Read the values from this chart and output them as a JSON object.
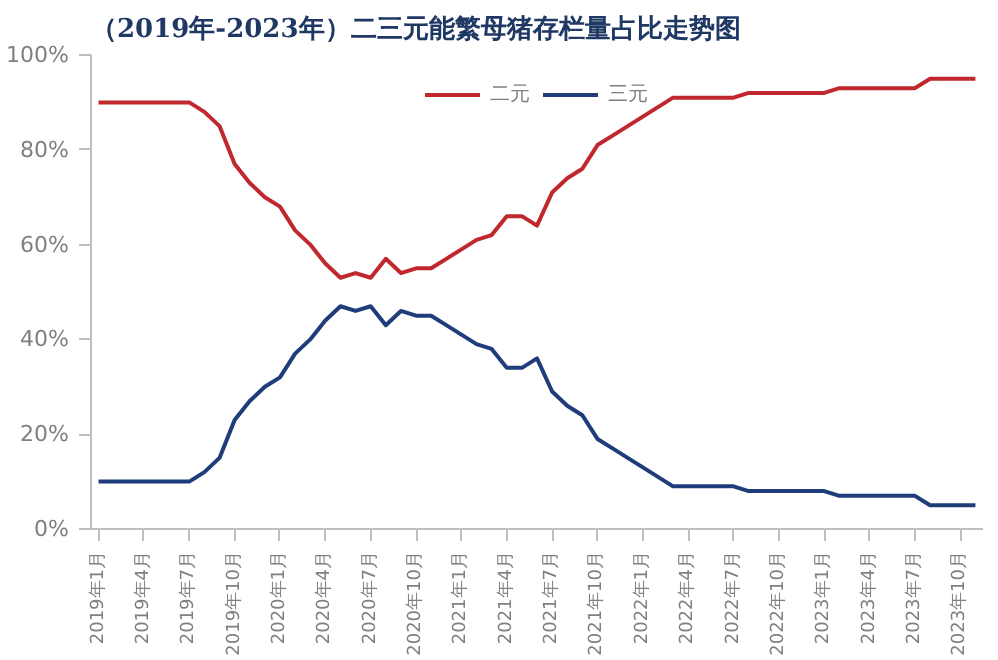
{
  "chart_data": {
    "type": "line",
    "title": "（2019年-2023年）二三元能繁母猪存栏量占比走势图",
    "categories": [
      "2019年1月",
      null,
      null,
      "2019年4月",
      null,
      null,
      "2019年7月",
      null,
      null,
      "2019年10月",
      null,
      null,
      "2020年1月",
      null,
      null,
      "2020年4月",
      null,
      null,
      "2020年7月",
      null,
      null,
      "2020年10月",
      null,
      null,
      "2021年1月",
      null,
      null,
      "2021年4月",
      null,
      null,
      "2021年7月",
      null,
      null,
      "2021年10月",
      null,
      null,
      "2022年1月",
      null,
      null,
      "2022年4月",
      null,
      null,
      "2022年7月",
      null,
      null,
      "2022年10月",
      null,
      null,
      "2023年1月",
      null,
      null,
      "2023年4月",
      null,
      null,
      "2023年7月",
      null,
      null,
      "2023年10月",
      null
    ],
    "series": [
      {
        "name": "二元",
        "color": "#c0282d",
        "values": [
          90,
          90,
          90,
          90,
          90,
          90,
          90,
          88,
          85,
          77,
          73,
          70,
          68,
          63,
          60,
          56,
          53,
          54,
          53,
          57,
          54,
          55,
          55,
          57,
          59,
          61,
          62,
          66,
          66,
          64,
          71,
          74,
          76,
          81,
          83,
          85,
          87,
          89,
          91,
          91,
          91,
          91,
          91,
          92,
          92,
          92,
          92,
          92,
          92,
          93,
          93,
          93,
          93,
          93,
          93,
          95,
          95,
          95,
          95
        ]
      },
      {
        "name": "三元",
        "color": "#1f3d7a",
        "values": [
          10,
          10,
          10,
          10,
          10,
          10,
          10,
          12,
          15,
          23,
          27,
          30,
          32,
          37,
          40,
          44,
          47,
          46,
          47,
          43,
          46,
          45,
          45,
          43,
          41,
          39,
          38,
          34,
          34,
          36,
          29,
          26,
          24,
          19,
          17,
          15,
          13,
          11,
          9,
          9,
          9,
          9,
          9,
          8,
          8,
          8,
          8,
          8,
          8,
          7,
          7,
          7,
          7,
          7,
          7,
          5,
          5,
          5,
          5
        ]
      }
    ],
    "ylim": [
      0,
      100
    ],
    "yticks": [
      {
        "value": 0,
        "label": "0%"
      },
      {
        "value": 20,
        "label": "20%"
      },
      {
        "value": 40,
        "label": "40%"
      },
      {
        "value": 60,
        "label": "60%"
      },
      {
        "value": 80,
        "label": "80%"
      },
      {
        "value": 100,
        "label": "100%"
      }
    ],
    "grid": false,
    "legend": "top",
    "marker": "none",
    "line_style": "solid"
  }
}
